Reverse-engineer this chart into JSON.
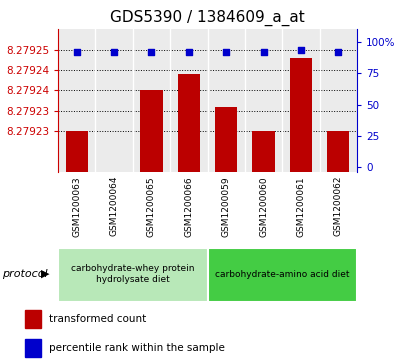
{
  "title": "GDS5390 / 1384609_a_at",
  "samples": [
    "GSM1200063",
    "GSM1200064",
    "GSM1200065",
    "GSM1200066",
    "GSM1200059",
    "GSM1200060",
    "GSM1200061",
    "GSM1200062"
  ],
  "bar_values": [
    8.27923,
    8.27922,
    8.27924,
    8.279244,
    8.279236,
    8.27923,
    8.279248,
    8.27923
  ],
  "percentile_values": [
    92,
    92,
    92,
    92,
    92,
    92,
    93,
    92
  ],
  "bar_color": "#bb0000",
  "dot_color": "#0000cc",
  "ylim_left": [
    8.27922,
    8.279255
  ],
  "ylim_right": [
    -4,
    110
  ],
  "ytick_left_vals": [
    8.27923,
    8.279235,
    8.27924,
    8.279245,
    8.27925
  ],
  "ytick_left_labels": [
    "8.27923",
    "8.27923",
    "8.27924",
    "8.27924",
    "8.27925"
  ],
  "ytick_right_vals": [
    0,
    25,
    50,
    75,
    100
  ],
  "groups": [
    {
      "label": "carbohydrate-whey protein\nhydrolysate diet",
      "color": "#b8e8b8",
      "start": 0,
      "end": 4
    },
    {
      "label": "carbohydrate-amino acid diet",
      "color": "#44cc44",
      "start": 4,
      "end": 8
    }
  ],
  "legend_items": [
    {
      "label": "transformed count",
      "color": "#bb0000"
    },
    {
      "label": "percentile rank within the sample",
      "color": "#0000cc"
    }
  ],
  "protocol_label": "protocol",
  "left_axis_color": "#cc0000",
  "right_axis_color": "#0000cc",
  "bg_color": "#ffffff",
  "plot_bg": "#ebebeb",
  "sample_row_color": "#d8d8d8",
  "grid_color": "#000000",
  "title_fontsize": 11
}
